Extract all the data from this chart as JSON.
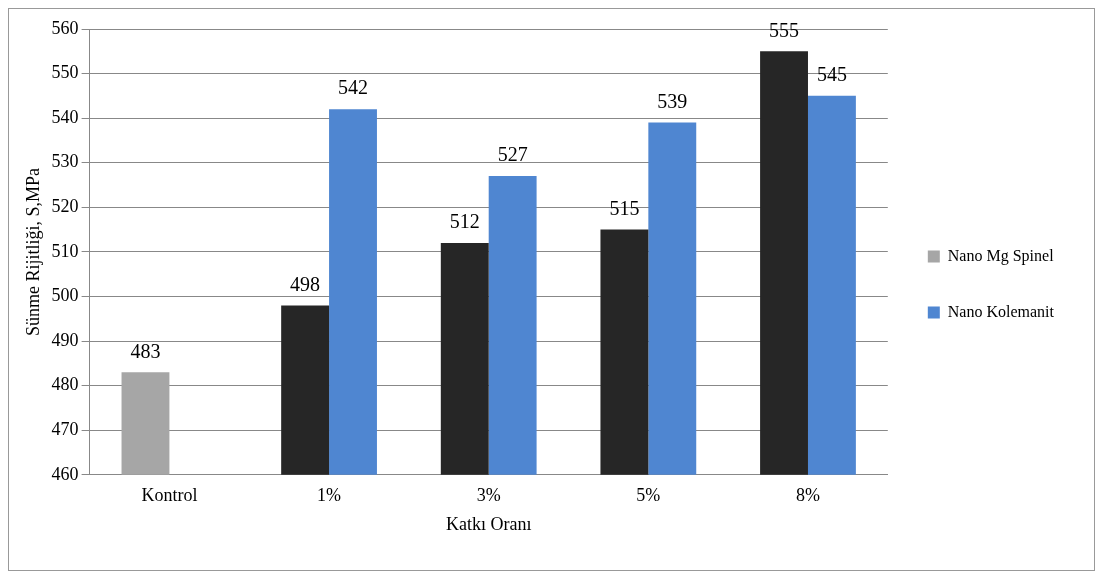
{
  "chart_data": {
    "type": "bar",
    "xlabel": "Katkı Oranı",
    "ylabel": "Sünme Rijitliği, S,MPa",
    "categories": [
      "Kontrol",
      "1%",
      "3%",
      "5%",
      "8%"
    ],
    "series": [
      {
        "name": "Nano Mg Spinel",
        "color": "#262626",
        "colors": [
          "#a6a6a6",
          "#262626",
          "#262626",
          "#262626",
          "#262626"
        ],
        "values": [
          483,
          498,
          512,
          515,
          555
        ]
      },
      {
        "name": "Nano Kolemanit",
        "color": "#4f86d1",
        "values": [
          null,
          542,
          527,
          539,
          545
        ]
      }
    ],
    "ylim": [
      460,
      560
    ],
    "yticks": [
      460,
      470,
      480,
      490,
      500,
      510,
      520,
      530,
      540,
      550,
      560
    ],
    "grid": "y",
    "legend": "right",
    "data_labels": true
  }
}
